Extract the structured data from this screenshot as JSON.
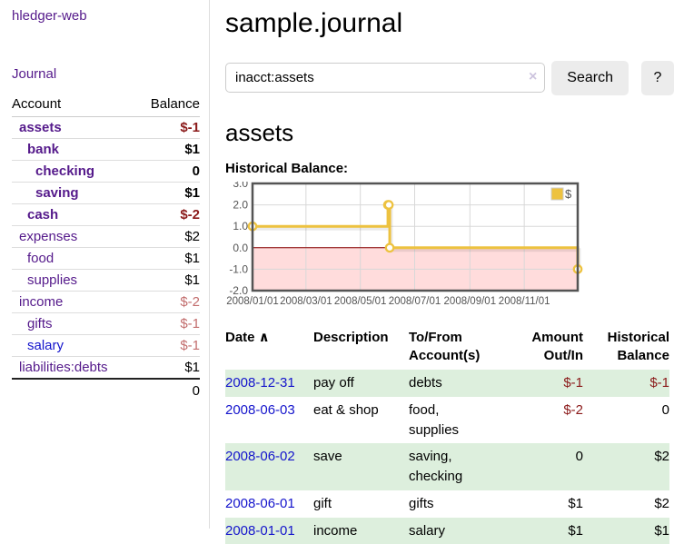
{
  "app": {
    "title": "hledger-web"
  },
  "sidebar": {
    "journal_link": "Journal",
    "accounts": {
      "header_account": "Account",
      "header_balance": "Balance",
      "rows": [
        {
          "name": "assets",
          "depth": 1,
          "bold": true,
          "link": "purple",
          "balance": "$-1",
          "balance_class": "neg"
        },
        {
          "name": "bank",
          "depth": 2,
          "bold": true,
          "link": "purple",
          "balance": "$1",
          "balance_class": "pos"
        },
        {
          "name": "checking",
          "depth": 3,
          "bold": true,
          "link": "purple",
          "balance": "0",
          "balance_class": "pos"
        },
        {
          "name": "saving",
          "depth": 3,
          "bold": true,
          "link": "purple",
          "balance": "$1",
          "balance_class": "pos"
        },
        {
          "name": "cash",
          "depth": 2,
          "bold": true,
          "link": "purple",
          "balance": "$-2",
          "balance_class": "neg"
        },
        {
          "name": "expenses",
          "depth": 1,
          "bold": false,
          "link": "purple",
          "balance": "$2",
          "balance_class": "pos"
        },
        {
          "name": "food",
          "depth": 2,
          "bold": false,
          "link": "purple",
          "balance": "$1",
          "balance_class": "pos"
        },
        {
          "name": "supplies",
          "depth": 2,
          "bold": false,
          "link": "purple",
          "balance": "$1",
          "balance_class": "pos"
        },
        {
          "name": "income",
          "depth": 1,
          "bold": false,
          "link": "purple",
          "balance": "$-2",
          "balance_class": "neg-muted"
        },
        {
          "name": "gifts",
          "depth": 2,
          "bold": false,
          "link": "purple",
          "balance": "$-1",
          "balance_class": "neg-muted"
        },
        {
          "name": "salary",
          "depth": 2,
          "bold": false,
          "link": "blue",
          "balance": "$-1",
          "balance_class": "neg-muted"
        },
        {
          "name": "liabilities:debts",
          "depth": 1,
          "bold": false,
          "link": "purple",
          "balance": "$1",
          "balance_class": "pos"
        }
      ],
      "total": "0"
    }
  },
  "main": {
    "title": "sample.journal",
    "search": {
      "value": "inacct:assets",
      "clear_icon": "×",
      "search_button": "Search",
      "help_button": "?"
    },
    "account_heading": "assets",
    "chart_heading": "Historical Balance:"
  },
  "chart_data": {
    "type": "line",
    "style": "step-post",
    "title": "Historical Balance",
    "series": [
      {
        "name": "$",
        "color": "#EDC240",
        "points": [
          [
            "2008-01-01",
            1
          ],
          [
            "2008-06-01",
            2
          ],
          [
            "2008-06-02",
            2
          ],
          [
            "2008-06-03",
            0
          ],
          [
            "2008-12-31",
            -1
          ]
        ]
      }
    ],
    "xlim": [
      "2008-01-01",
      "2008-12-31"
    ],
    "ylim": [
      -2,
      3
    ],
    "x_ticks": [
      {
        "date": "2008-01-01",
        "label": "2008/01/01"
      },
      {
        "date": "2008-03-01",
        "label": "2008/03/01"
      },
      {
        "date": "2008-05-01",
        "label": "2008/05/01"
      },
      {
        "date": "2008-07-01",
        "label": "2008/07/01"
      },
      {
        "date": "2008-09-01",
        "label": "2008/09/01"
      },
      {
        "date": "2008-11-01",
        "label": "2008/11/01"
      }
    ],
    "y_ticks": [
      {
        "v": 3,
        "label": "3.0"
      },
      {
        "v": 2,
        "label": "2.0"
      },
      {
        "v": 1,
        "label": "1.0"
      },
      {
        "v": 0,
        "label": "0.0"
      },
      {
        "v": -1,
        "label": "-1.0"
      },
      {
        "v": -2,
        "label": "-2.0"
      }
    ],
    "legend_position": "top-right",
    "grid": true,
    "colors": {
      "grid": "#d8d8d8",
      "border": "#545454",
      "tick_text": "#545454",
      "negative_fill": "#ffdcdc",
      "zero_line": "#8b0000",
      "marker_fill": "#ffffff"
    }
  },
  "register": {
    "sort_arrow": "∧",
    "headers": [
      {
        "label": "Date",
        "align": "left",
        "sortable": true
      },
      {
        "label": "Description",
        "align": "left"
      },
      {
        "label": "To/From Account(s)",
        "align": "left"
      },
      {
        "label": "Amount Out/In",
        "align": "right"
      },
      {
        "label": "Historical Balance",
        "align": "right"
      }
    ],
    "rows": [
      {
        "date": "2008-12-31",
        "description": "pay off",
        "accounts": "debts",
        "amount": "$-1",
        "amount_class": "neg",
        "balance": "$-1",
        "balance_class": "neg"
      },
      {
        "date": "2008-06-03",
        "description": "eat & shop",
        "accounts": "food, supplies",
        "amount": "$-2",
        "amount_class": "neg",
        "balance": "0",
        "balance_class": "pos"
      },
      {
        "date": "2008-06-02",
        "description": "save",
        "accounts": "saving, checking",
        "amount": "0",
        "amount_class": "pos",
        "balance": "$2",
        "balance_class": "pos"
      },
      {
        "date": "2008-06-01",
        "description": "gift",
        "accounts": "gifts",
        "amount": "$1",
        "amount_class": "pos",
        "balance": "$2",
        "balance_class": "pos"
      },
      {
        "date": "2008-01-01",
        "description": "income",
        "accounts": "salary",
        "amount": "$1",
        "amount_class": "pos",
        "balance": "$1",
        "balance_class": "pos"
      }
    ]
  },
  "colors": {
    "link_purple": "#551a8b",
    "link_blue": "#1414cc",
    "negative_strong": "#8b1a1a",
    "negative_muted": "#c26d6d",
    "row_stripe_green": "#ddefdd",
    "chart_line": "#EDC240",
    "button_bg": "#ececec"
  }
}
